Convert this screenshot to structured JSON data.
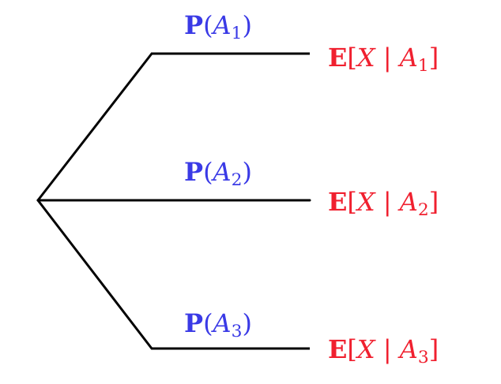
{
  "colors": {
    "probability": "#3a3ae6",
    "expectation": "#f0202f",
    "line": "#000000"
  },
  "branches": [
    {
      "prob": {
        "fn": "P",
        "open": "(",
        "var": "A",
        "sub": "1",
        "close": ")"
      },
      "expect": {
        "fn": "E",
        "open": "[",
        "var": "X",
        "sep": " | ",
        "given": "A",
        "sub": "1",
        "close": "]"
      }
    },
    {
      "prob": {
        "fn": "P",
        "open": "(",
        "var": "A",
        "sub": "2",
        "close": ")"
      },
      "expect": {
        "fn": "E",
        "open": "[",
        "var": "X",
        "sep": " | ",
        "given": "A",
        "sub": "2",
        "close": "]"
      }
    },
    {
      "prob": {
        "fn": "P",
        "open": "(",
        "var": "A",
        "sub": "3",
        "close": ")"
      },
      "expect": {
        "fn": "E",
        "open": "[",
        "var": "X",
        "sep": " | ",
        "given": "A",
        "sub": "3",
        "close": "]"
      }
    }
  ]
}
